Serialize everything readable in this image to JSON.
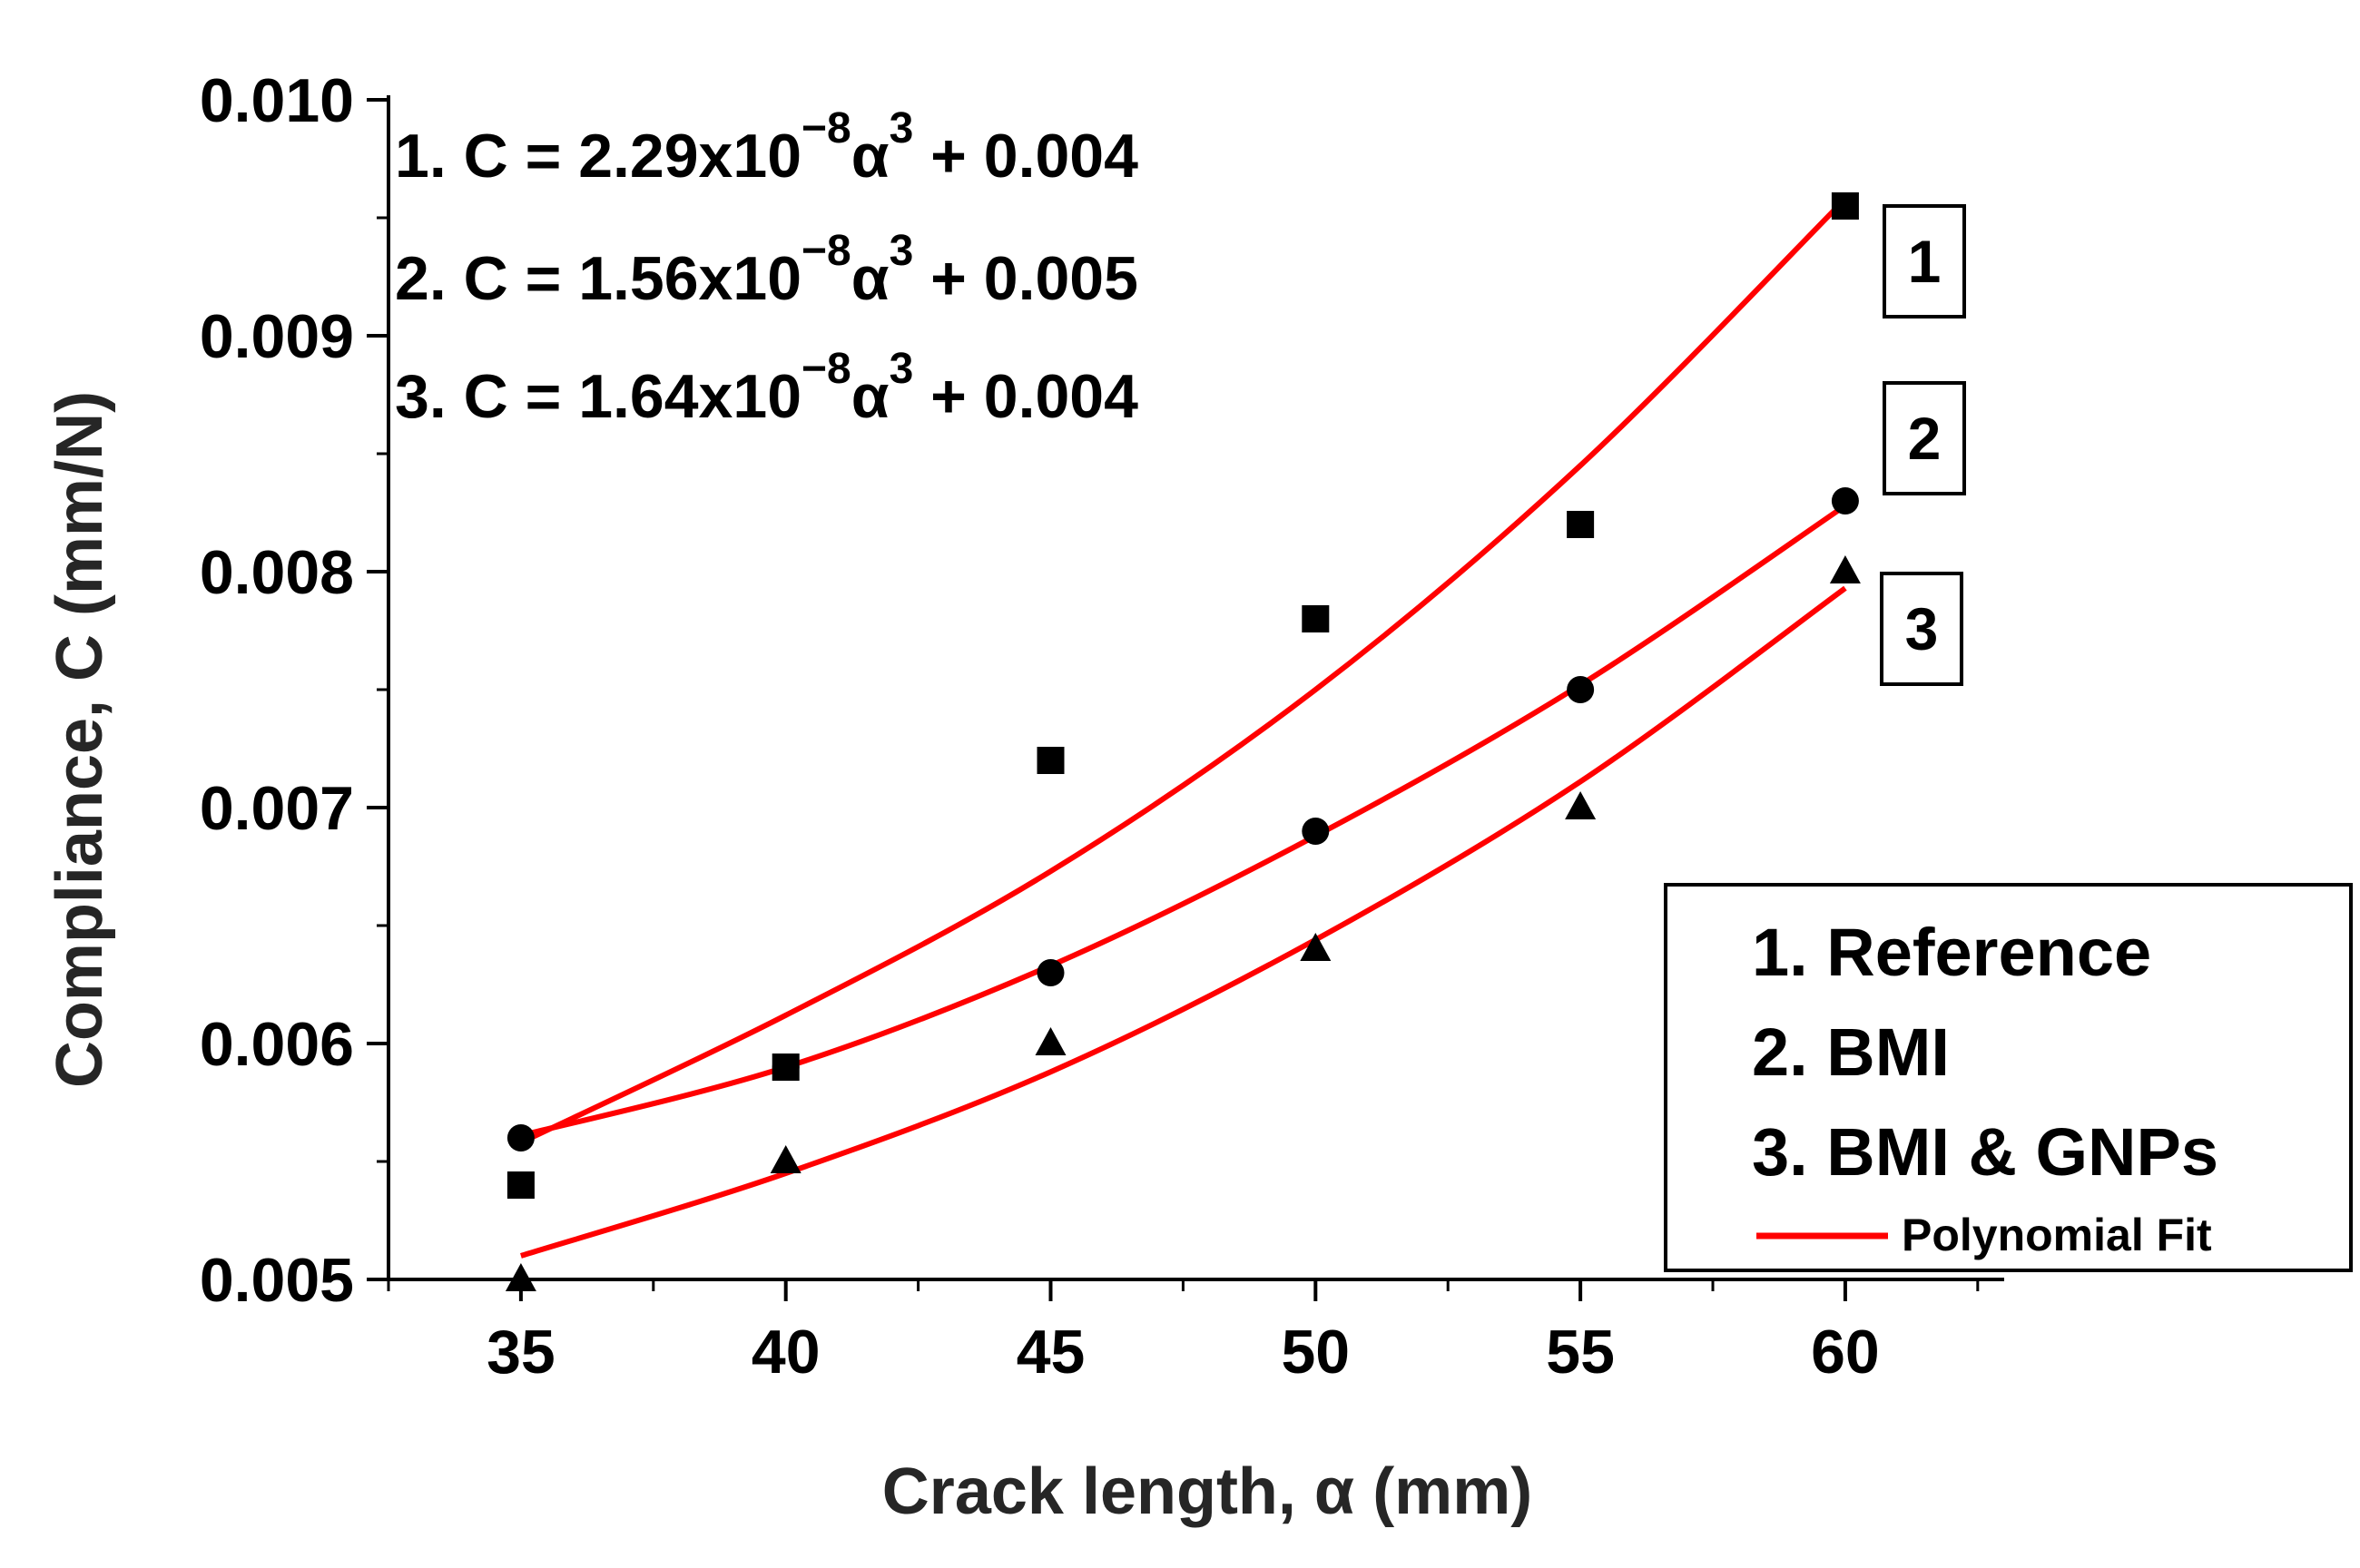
{
  "chart_data": {
    "type": "scatter",
    "xlabel_prefix": "Crack length, ",
    "xlabel_symbol": "α",
    "xlabel_suffix": " (mm)",
    "ylabel": "Compliance, C (mm/N)",
    "xlim": [
      32.5,
      63.0
    ],
    "ylim": [
      0.005,
      0.01
    ],
    "x_ticks": [
      35,
      40,
      45,
      50,
      55,
      60
    ],
    "y_ticks": [
      "0.005",
      "0.006",
      "0.007",
      "0.008",
      "0.009",
      "0.010"
    ],
    "y_tick_values": [
      0.005,
      0.006,
      0.007,
      0.008,
      0.009,
      0.01
    ],
    "fit_color": "#ff0000",
    "marker_color": "#000000",
    "series": [
      {
        "name": "1. Reference",
        "marker": "square",
        "tag": "1",
        "x": [
          35,
          40,
          45,
          50,
          55,
          60
        ],
        "y": [
          0.0054,
          0.0059,
          0.0072,
          0.0078,
          0.0082,
          0.00955
        ],
        "fit_y": [
          0.00558,
          0.00612,
          0.00673,
          0.0075,
          0.00845,
          0.00958
        ]
      },
      {
        "name": "2. BMI",
        "marker": "circle",
        "tag": "2",
        "x": [
          35,
          40,
          45,
          50,
          55,
          60
        ],
        "y": [
          0.0056,
          0.0059,
          0.0063,
          0.0069,
          0.0075,
          0.0083
        ],
        "fit_y": [
          0.00561,
          0.0059,
          0.00633,
          0.00688,
          0.00752,
          0.00828
        ]
      },
      {
        "name": "3. BMI & GNPs",
        "marker": "triangle",
        "tag": "3",
        "x": [
          35,
          40,
          45,
          50,
          55,
          60
        ],
        "y": [
          0.005,
          0.0055,
          0.006,
          0.0064,
          0.007,
          0.008
        ],
        "fit_y": [
          0.0051,
          0.00545,
          0.00588,
          0.00644,
          0.00711,
          0.00793
        ]
      }
    ],
    "equations": [
      {
        "prefix": "1. C = 2.29x10",
        "exp": "−8",
        "var": "α",
        "pow": "3",
        "suffix": " + 0.004"
      },
      {
        "prefix": "2. C = 1.56x10",
        "exp": "−8",
        "var": "α",
        "pow": "3",
        "suffix": " + 0.005"
      },
      {
        "prefix": "3. C = 1.64x10",
        "exp": "−8",
        "var": "α",
        "pow": "3",
        "suffix": " + 0.004"
      }
    ],
    "legend": {
      "entries": [
        "1. Reference",
        "2. BMI",
        "3. BMI & GNPs"
      ],
      "fit_label": "Polynomial Fit",
      "placement": "bottom-right"
    }
  }
}
